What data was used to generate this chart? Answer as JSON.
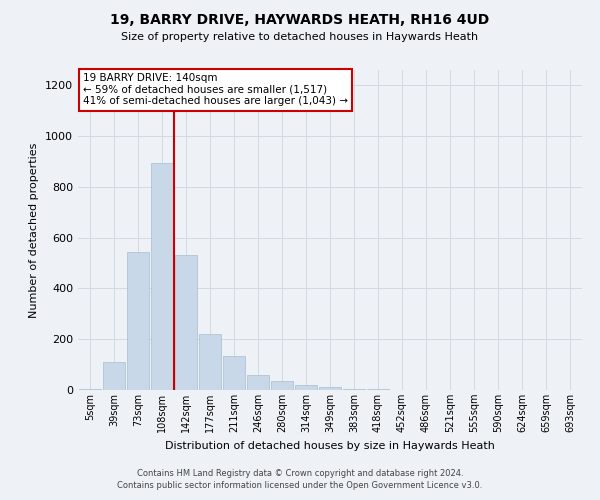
{
  "title": "19, BARRY DRIVE, HAYWARDS HEATH, RH16 4UD",
  "subtitle": "Size of property relative to detached houses in Haywards Heath",
  "xlabel": "Distribution of detached houses by size in Haywards Heath",
  "ylabel": "Number of detached properties",
  "bar_color": "#c8d8e8",
  "bar_edge_color": "#a8bece",
  "grid_color": "#d0dae2",
  "annotation_line_color": "#cc0000",
  "annotation_box_color": "#ffffff",
  "annotation_box_edge": "#cc0000",
  "bin_labels": [
    "5sqm",
    "39sqm",
    "73sqm",
    "108sqm",
    "142sqm",
    "177sqm",
    "211sqm",
    "246sqm",
    "280sqm",
    "314sqm",
    "349sqm",
    "383sqm",
    "418sqm",
    "452sqm",
    "486sqm",
    "521sqm",
    "555sqm",
    "590sqm",
    "624sqm",
    "659sqm",
    "693sqm"
  ],
  "bar_values": [
    5,
    110,
    545,
    895,
    530,
    220,
    135,
    60,
    35,
    20,
    10,
    5,
    2,
    0,
    0,
    0,
    0,
    0,
    0,
    0,
    0
  ],
  "property_bin_index": 4,
  "annotation_text": "19 BARRY DRIVE: 140sqm\n← 59% of detached houses are smaller (1,517)\n41% of semi-detached houses are larger (1,043) →",
  "ylim": [
    0,
    1260
  ],
  "yticks": [
    0,
    200,
    400,
    600,
    800,
    1000,
    1200
  ],
  "footer_line1": "Contains HM Land Registry data © Crown copyright and database right 2024.",
  "footer_line2": "Contains public sector information licensed under the Open Government Licence v3.0.",
  "background_color": "#eef2f6",
  "plot_bg_color": "#eef2f6",
  "title_fontsize": 10,
  "subtitle_fontsize": 8,
  "ylabel_fontsize": 8,
  "xlabel_fontsize": 8,
  "tick_fontsize": 7,
  "footer_fontsize": 6,
  "annot_fontsize": 7.5
}
